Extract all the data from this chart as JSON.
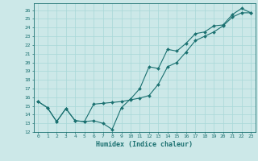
{
  "title": "",
  "xlabel": "Humidex (Indice chaleur)",
  "ylabel": "",
  "bg_color": "#cce8e8",
  "line_color": "#1a7070",
  "marker": "D",
  "marker_size": 2.0,
  "xlim": [
    -0.5,
    23.5
  ],
  "ylim": [
    12,
    26.8
  ],
  "xticks": [
    0,
    1,
    2,
    3,
    4,
    5,
    6,
    7,
    8,
    9,
    10,
    11,
    12,
    13,
    14,
    15,
    16,
    17,
    18,
    19,
    20,
    21,
    22,
    23
  ],
  "yticks": [
    12,
    13,
    14,
    15,
    16,
    17,
    18,
    19,
    20,
    21,
    22,
    23,
    24,
    25,
    26
  ],
  "line1_x": [
    0,
    1,
    2,
    3,
    4,
    5,
    6,
    7,
    8,
    9,
    10,
    11,
    12,
    13,
    14,
    15,
    16,
    17,
    18,
    19,
    20,
    21,
    22,
    23
  ],
  "line1_y": [
    15.5,
    14.8,
    13.2,
    14.7,
    13.3,
    13.2,
    13.3,
    13.0,
    12.3,
    14.8,
    15.8,
    17.0,
    19.5,
    19.3,
    21.5,
    21.3,
    22.2,
    23.3,
    23.5,
    24.2,
    24.3,
    25.5,
    26.2,
    25.7
  ],
  "line2_x": [
    0,
    1,
    2,
    3,
    4,
    5,
    6,
    7,
    8,
    9,
    10,
    11,
    12,
    13,
    14,
    15,
    16,
    17,
    18,
    19,
    20,
    21,
    22,
    23
  ],
  "line2_y": [
    15.5,
    14.8,
    13.2,
    14.7,
    13.3,
    13.2,
    15.2,
    15.3,
    15.4,
    15.5,
    15.7,
    15.9,
    16.2,
    17.5,
    19.5,
    20.0,
    21.2,
    22.5,
    23.0,
    23.5,
    24.2,
    25.2,
    25.7,
    25.7
  ],
  "grid_color": "#a8d8d8",
  "font_family": "monospace",
  "tick_fontsize": 4.5,
  "xlabel_fontsize": 6.0
}
